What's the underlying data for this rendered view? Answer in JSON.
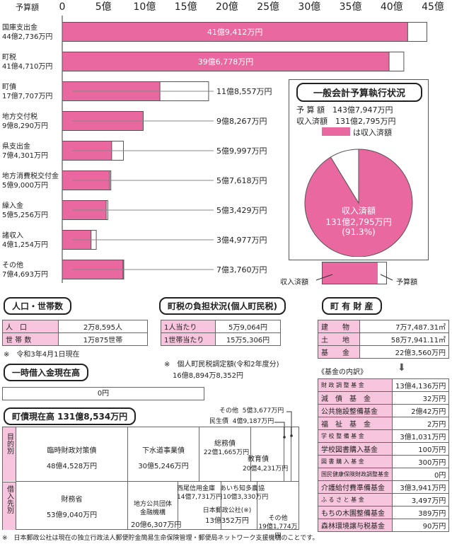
{
  "chart_data": {
    "type": "bar",
    "unit_label": "予算額",
    "xlim": [
      0,
      45
    ],
    "ticks": [
      "0",
      "5億",
      "10億",
      "15億",
      "20億",
      "25億",
      "30億",
      "35億",
      "40億",
      "45億"
    ],
    "tick_values": [
      0,
      5,
      10,
      15,
      20,
      25,
      30,
      35,
      40,
      45
    ],
    "bars": [
      {
        "name": "国庫支出金",
        "budget_label": "44億2,736万円",
        "budget": 44.27,
        "received": 41.94,
        "received_label": "41億9,412万円",
        "label_inside": true
      },
      {
        "name": "町税",
        "budget_label": "41億4,710万円",
        "budget": 41.47,
        "received": 39.68,
        "received_label": "39億6,778万円",
        "label_inside": true
      },
      {
        "name": "町債",
        "budget_label": "17億7,707万円",
        "budget": 17.77,
        "received": 11.86,
        "received_label": "11億8,557万円",
        "label_inside": false
      },
      {
        "name": "地方交付税",
        "budget_label": "9億8,290万円",
        "budget": 9.83,
        "received": 9.83,
        "received_label": "9億8,267万円",
        "label_inside": false
      },
      {
        "name": "県支出金",
        "budget_label": "7億4,301万円",
        "budget": 7.43,
        "received": 6.0,
        "received_label": "5億9,997万円",
        "label_inside": false
      },
      {
        "name": "地方消費税交付金",
        "budget_label": "5億9,000万円",
        "budget": 5.9,
        "received": 5.76,
        "received_label": "5億7,618万円",
        "label_inside": false
      },
      {
        "name": "繰入金",
        "budget_label": "5億5,256万円",
        "budget": 5.53,
        "received": 5.34,
        "received_label": "5億3,429万円",
        "label_inside": false
      },
      {
        "name": "諸収入",
        "budget_label": "4億1,254万円",
        "budget": 4.13,
        "received": 3.5,
        "received_label": "3億4,977万円",
        "label_inside": false
      },
      {
        "name": "その他",
        "budget_label": "7億4,693万円",
        "budget": 7.47,
        "received": 7.38,
        "received_label": "7億3,760万円",
        "label_inside": false
      }
    ],
    "colors": {
      "received": "#e9689f",
      "budget": "#ffffff",
      "stroke": "#555555"
    }
  },
  "summary": {
    "title": "一般会計予算執行状況",
    "budget_line": "予 算 額　143億7,947万円",
    "received_line": "収入済額　131億2,795万円",
    "legend_text": "は収入済額",
    "pie_label1": "収入済額",
    "pie_label2": "131億2,795万円",
    "pie_label3": "(91.3%)",
    "pie_fraction": 0.913,
    "key_received": "収入済額",
    "key_budget": "予算額"
  },
  "population": {
    "title": "人口・世帯数",
    "rows": [
      {
        "label": "人　口",
        "value": "2万8,595人"
      },
      {
        "label": "世 帯 数",
        "value": "1万875世帯"
      }
    ],
    "note": "※　令和3年4月1日現在"
  },
  "tax_burden": {
    "title": "町税の負担状況(個人町民税)",
    "rows": [
      {
        "label": "1人当たり",
        "value": "5万9,064円"
      },
      {
        "label": "1世帯当たり",
        "value": "15万5,306円"
      }
    ],
    "note1": "※　個人町民税調定額(令和2年度分)",
    "note2": "16億8,894万8,352円"
  },
  "temp_loan": {
    "title": "一時借入金現在高",
    "value": "0円"
  },
  "property": {
    "title": "町 有 財 産",
    "rows": [
      {
        "label": "建　　物",
        "value": "7万7,487.31㎡"
      },
      {
        "label": "土　　地",
        "value": "58万7,941.11㎡"
      },
      {
        "label": "基　　金",
        "value": "22億3,560万円"
      }
    ],
    "fund_title": "《基金の内訳》",
    "funds": [
      {
        "label": "財 政 調 整 基 金",
        "value": "13億4,136万円"
      },
      {
        "label": "減　債　基　金",
        "value": "32万円"
      },
      {
        "label": "公共施設整備基金",
        "value": "2億42万円"
      },
      {
        "label": "福　祉　基　金",
        "value": "2万円"
      },
      {
        "label": "学 校 整 備 基 金",
        "value": "3億1,031万円"
      },
      {
        "label": "学校図書購入基金",
        "value": "100万円"
      },
      {
        "label": "図 書 購 入 基 金",
        "value": "300万円"
      },
      {
        "label": "国民健康保険財政調整基金",
        "value": "0円"
      },
      {
        "label": "介護給付費準備基金",
        "value": "3億3,941万円"
      },
      {
        "label": "ふ る さ と 基 金",
        "value": "3,497万円"
      },
      {
        "label": "もちの木園整備基金",
        "value": "389万円"
      },
      {
        "label": "森林環境譲与税基金",
        "value": "90万円"
      }
    ]
  },
  "debt": {
    "title": "町債現在高 131億8,534万円",
    "row1_label": "目的別",
    "row2_label": "借入先別",
    "purpose": [
      {
        "name": "臨時財政対策債",
        "value": "48億4,528万円"
      },
      {
        "name": "下水道事業債",
        "value": "30億5,246万円"
      },
      {
        "name": "総務債",
        "value": "22億1,665万円"
      },
      {
        "name": "教育債",
        "value": "20億4,231万円"
      },
      {
        "name": "民生債",
        "value": "4億9,187万円"
      },
      {
        "name": "その他",
        "value": "5億3,677万円"
      }
    ],
    "lender": [
      {
        "name": "財務省",
        "value": "53億9,040万円"
      },
      {
        "name": "地方公共団体金融機構",
        "value": "20億6,307万円"
      },
      {
        "name": "西尾信用金庫",
        "value": "14億7,731万円"
      },
      {
        "name": "日本郵政公社(※)",
        "value": "13億352万円"
      },
      {
        "name": "あいち知多農協",
        "value": "10億3,330万円"
      },
      {
        "name": "その他",
        "value": "19億1,774万円"
      }
    ],
    "footnote": "※　日本郵政公社は現在の独立行政法人郵便貯金簡易生命保険管理・郵便局ネットワーク支援機構のことです。"
  }
}
